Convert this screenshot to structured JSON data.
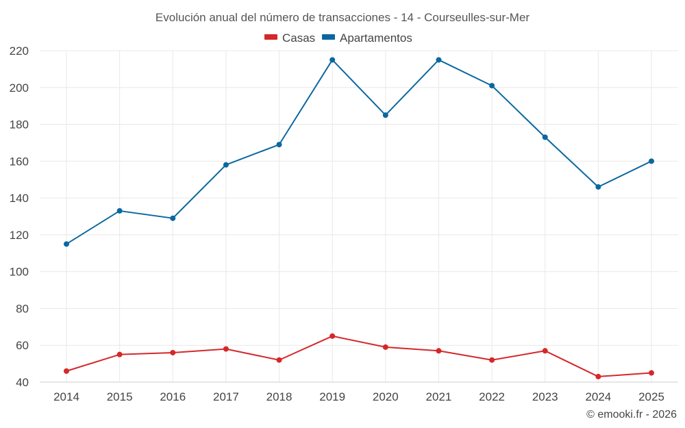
{
  "chart_data": {
    "type": "line",
    "title": "Evolución anual del número de transacciones - 14 - Courseulles-sur-Mer",
    "categories": [
      "2014",
      "2015",
      "2016",
      "2017",
      "2018",
      "2019",
      "2020",
      "2021",
      "2022",
      "2023",
      "2024",
      "2025"
    ],
    "series": [
      {
        "name": "Casas",
        "color": "#d62728",
        "values": [
          46,
          55,
          56,
          58,
          52,
          65,
          59,
          57,
          52,
          57,
          43,
          45
        ]
      },
      {
        "name": "Apartamentos",
        "color": "#0b67a0",
        "values": [
          115,
          133,
          129,
          158,
          169,
          215,
          185,
          215,
          201,
          173,
          146,
          160
        ]
      }
    ],
    "ylim": [
      40,
      220
    ],
    "yticks": [
      40,
      60,
      80,
      100,
      120,
      140,
      160,
      180,
      200,
      220
    ],
    "xlabel": "",
    "ylabel": "",
    "grid": true,
    "legend_position": "top-center"
  },
  "credit": "© emooki.fr - 2026"
}
